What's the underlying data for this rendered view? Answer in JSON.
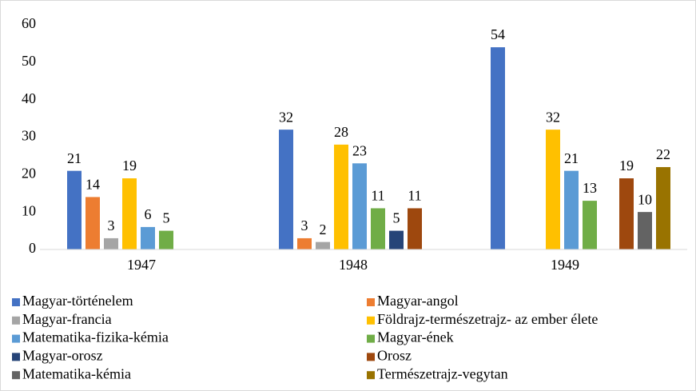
{
  "chart_data": {
    "type": "bar",
    "categories": [
      "1947",
      "1948",
      "1949"
    ],
    "series": [
      {
        "name": "Magyar-történelem",
        "color": "#4472c4",
        "values": [
          21,
          32,
          54
        ]
      },
      {
        "name": "Magyar-angol",
        "color": "#ed7d31",
        "values": [
          14,
          3,
          null
        ]
      },
      {
        "name": "Magyar-francia",
        "color": "#a5a5a5",
        "values": [
          3,
          2,
          null
        ]
      },
      {
        "name": "Földrajz-természetrajz- az ember élete",
        "color": "#ffc000",
        "values": [
          19,
          28,
          32
        ]
      },
      {
        "name": "Matematika-fizika-kémia",
        "color": "#5b9bd5",
        "values": [
          6,
          23,
          21
        ]
      },
      {
        "name": "Magyar-ének",
        "color": "#70ad47",
        "values": [
          5,
          11,
          13
        ]
      },
      {
        "name": "Magyar-orosz",
        "color": "#264478",
        "values": [
          null,
          5,
          null
        ]
      },
      {
        "name": "Orosz",
        "color": "#9e480e",
        "values": [
          null,
          11,
          19
        ]
      },
      {
        "name": "Matematika-kémia",
        "color": "#636363",
        "values": [
          null,
          null,
          10
        ]
      },
      {
        "name": "Természetrajz-vegytan",
        "color": "#997300",
        "values": [
          null,
          null,
          22
        ]
      }
    ],
    "ylim": [
      0,
      60
    ],
    "yticks": [
      0,
      10,
      20,
      30,
      40,
      50,
      60
    ],
    "grid": false,
    "legend": "bottom"
  }
}
